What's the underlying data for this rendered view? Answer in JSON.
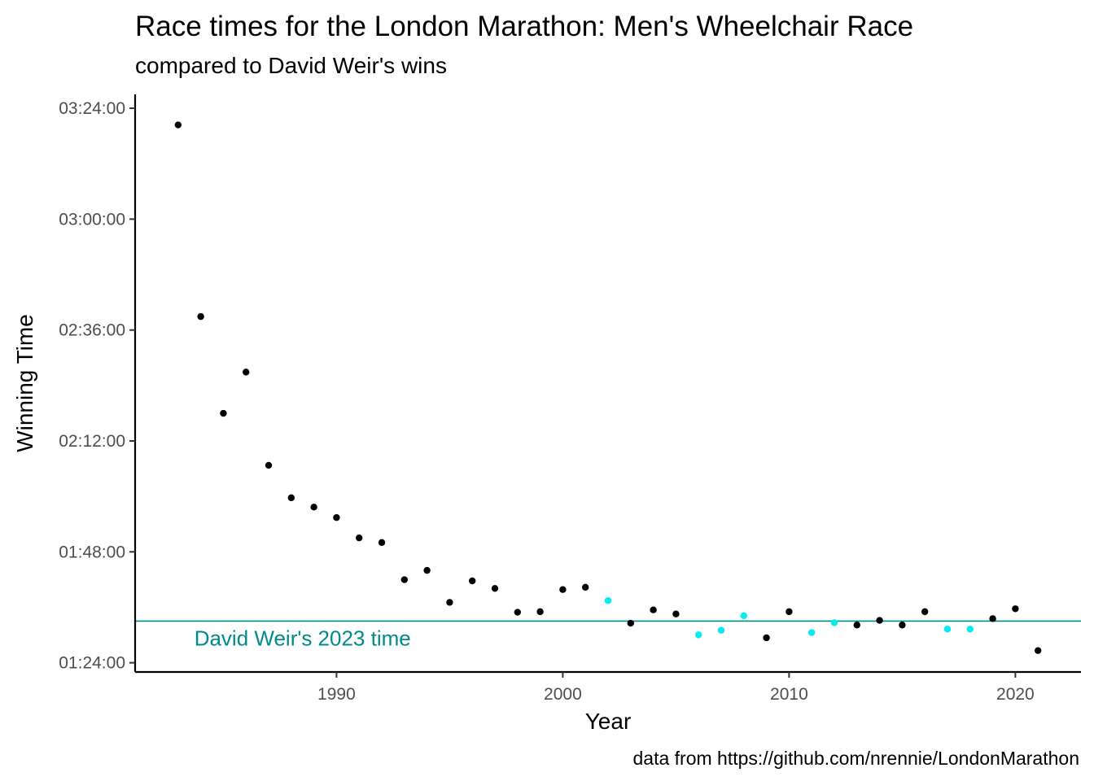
{
  "chart_data": {
    "type": "scatter",
    "title": "Race times for the London Marathon: Men's Wheelchair Race",
    "subtitle": "compared to David Weir's wins",
    "xlabel": "Year",
    "ylabel": "Winning Time",
    "caption": "data from https://github.com/nrennie/LondonMarathon",
    "xlim": [
      1981.1,
      2022.9
    ],
    "ylim": [
      4920,
      12420
    ],
    "x_ticks": [
      1990,
      2000,
      2010,
      2020
    ],
    "y_ticks": [
      {
        "value": 5040,
        "label": "01:24:00"
      },
      {
        "value": 6480,
        "label": "01:48:00"
      },
      {
        "value": 7920,
        "label": "02:12:00"
      },
      {
        "value": 9360,
        "label": "02:36:00"
      },
      {
        "value": 10800,
        "label": "03:00:00"
      },
      {
        "value": 12240,
        "label": "03:24:00"
      }
    ],
    "grid": false,
    "colors": {
      "default": "#000000",
      "david_weir": "#00EEEE",
      "reference_line": "#008B8B"
    },
    "reference_line": {
      "value": 5581,
      "label": "David Weir's 2023 time",
      "label_year": 1988.5
    },
    "series": [
      {
        "color_key": "default",
        "points": [
          {
            "x": 1983,
            "y": 12023
          },
          {
            "x": 1984,
            "y": 9535
          },
          {
            "x": 1985,
            "y": 8279
          },
          {
            "x": 1986,
            "y": 8814
          },
          {
            "x": 1987,
            "y": 7604
          },
          {
            "x": 1988,
            "y": 7182
          },
          {
            "x": 1989,
            "y": 7061
          },
          {
            "x": 1990,
            "y": 6925
          },
          {
            "x": 1991,
            "y": 6661
          },
          {
            "x": 1992,
            "y": 6601
          },
          {
            "x": 1993,
            "y": 6118
          },
          {
            "x": 1994,
            "y": 6239
          },
          {
            "x": 1995,
            "y": 5824
          },
          {
            "x": 1996,
            "y": 6103
          },
          {
            "x": 1997,
            "y": 6005
          },
          {
            "x": 1998,
            "y": 5696
          },
          {
            "x": 1999,
            "y": 5703
          },
          {
            "x": 2000,
            "y": 5990
          },
          {
            "x": 2001,
            "y": 6020
          },
          {
            "x": 2003,
            "y": 5553
          },
          {
            "x": 2004,
            "y": 5726
          },
          {
            "x": 2005,
            "y": 5673
          },
          {
            "x": 2009,
            "y": 5364
          },
          {
            "x": 2010,
            "y": 5703
          },
          {
            "x": 2013,
            "y": 5530
          },
          {
            "x": 2014,
            "y": 5590
          },
          {
            "x": 2015,
            "y": 5530
          },
          {
            "x": 2016,
            "y": 5703
          },
          {
            "x": 2019,
            "y": 5613
          },
          {
            "x": 2020,
            "y": 5741
          },
          {
            "x": 2021,
            "y": 5198
          }
        ]
      },
      {
        "color_key": "david_weir",
        "points": [
          {
            "x": 2002,
            "y": 5847
          },
          {
            "x": 2006,
            "y": 5402
          },
          {
            "x": 2007,
            "y": 5462
          },
          {
            "x": 2008,
            "y": 5651
          },
          {
            "x": 2011,
            "y": 5432
          },
          {
            "x": 2012,
            "y": 5560
          },
          {
            "x": 2017,
            "y": 5477
          },
          {
            "x": 2018,
            "y": 5477
          }
        ]
      }
    ]
  }
}
